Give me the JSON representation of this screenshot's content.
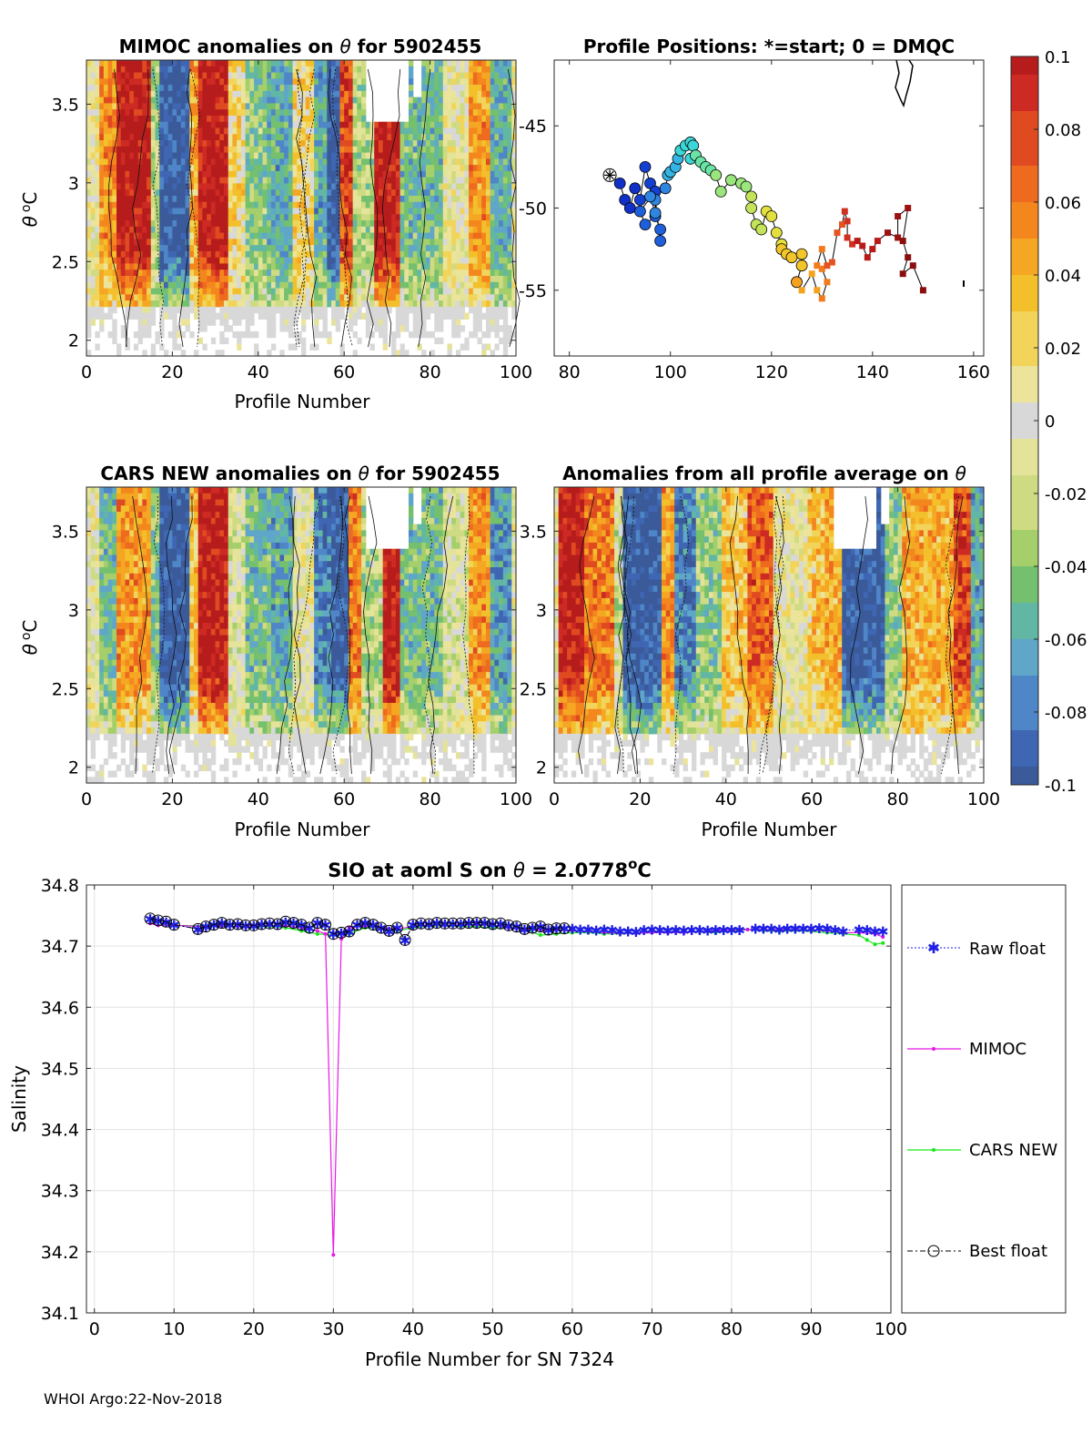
{
  "figure_footer": "WHOI Argo:22-Nov-2018",
  "theta_symbol": "θ",
  "colorbar": {
    "ticks": [
      0.1,
      0.08,
      0.06,
      0.04,
      0.02,
      0,
      -0.02,
      -0.04,
      -0.06,
      -0.08,
      -0.1
    ],
    "tick_labels": [
      "0.1",
      "0.08",
      "0.06",
      "0.04",
      "0.02",
      "0",
      "-0.02",
      "-0.04",
      "-0.06",
      "-0.08",
      "-0.1"
    ],
    "colors": [
      "#3B5A9A",
      "#3F66B3",
      "#4E86C7",
      "#5FA6C9",
      "#62B7A4",
      "#74C06F",
      "#A4CF6A",
      "#CFDB83",
      "#E4E39A",
      "#D8D8D8",
      "#ECE49A",
      "#F2D45A",
      "#F3C02C",
      "#F5A623",
      "#F4861E",
      "#EE6A1E",
      "#E04A21",
      "#CD2A23",
      "#B71C1C"
    ],
    "range": [
      -0.1,
      0.1
    ]
  },
  "chart_data": [
    {
      "id": "mimoc_anomalies",
      "type": "heatmap",
      "title_prefix": "MIMOC anomalies on",
      "title_suffix": " for 5902455",
      "xlabel": "Profile Number",
      "ylabel": "θ °C",
      "xlim": [
        0,
        100
      ],
      "ylim": [
        1.9,
        3.78
      ],
      "xticks": [
        0,
        20,
        40,
        60,
        80,
        100
      ],
      "yticks": [
        2,
        2.5,
        3,
        3.5
      ],
      "ytick_labels": [
        "2",
        "2.5",
        "3",
        "3.5"
      ]
    },
    {
      "id": "profile_positions",
      "type": "scatter",
      "title": "Profile Positions: *=start; 0 = DMQC",
      "xlim": [
        77,
        162
      ],
      "ylim": [
        -59,
        -41
      ],
      "xticks": [
        80,
        100,
        120,
        140,
        160
      ],
      "yticks": [
        -45,
        -50,
        -55
      ],
      "ytick_labels": [
        "-45",
        "-50",
        "-55"
      ],
      "start": [
        88,
        -48
      ],
      "track": [
        [
          88,
          -48
        ],
        [
          90,
          -48.5
        ],
        [
          91,
          -49.5
        ],
        [
          92,
          -50
        ],
        [
          93,
          -48.8
        ],
        [
          94,
          -49.5
        ],
        [
          95,
          -47.5
        ],
        [
          96,
          -48.5
        ],
        [
          97,
          -49
        ],
        [
          94,
          -50.2
        ],
        [
          95,
          -51
        ],
        [
          97,
          -50.5
        ],
        [
          98,
          -51.3
        ],
        [
          98,
          -52
        ],
        [
          97,
          -49.5
        ],
        [
          97,
          -50.3
        ],
        [
          96,
          -49.3
        ],
        [
          99,
          -48.8
        ],
        [
          99.5,
          -48
        ],
        [
          100,
          -47.8
        ],
        [
          101,
          -47.5
        ],
        [
          101.5,
          -47
        ],
        [
          102,
          -46.5
        ],
        [
          103,
          -46.2
        ],
        [
          104,
          -46
        ],
        [
          104.5,
          -46.2
        ],
        [
          104,
          -47
        ],
        [
          105,
          -46.8
        ],
        [
          106,
          -47.2
        ],
        [
          107,
          -47.5
        ],
        [
          108,
          -47.7
        ],
        [
          109,
          -48
        ],
        [
          110,
          -49
        ],
        [
          112,
          -48.3
        ],
        [
          114,
          -48.5
        ],
        [
          115,
          -48.7
        ],
        [
          116,
          -49.3
        ],
        [
          116,
          -50
        ],
        [
          117,
          -51
        ],
        [
          118,
          -51.3
        ],
        [
          119,
          -50.2
        ],
        [
          120,
          -50.5
        ],
        [
          121,
          -51.5
        ],
        [
          122,
          -52.2
        ],
        [
          122,
          -52.5
        ],
        [
          123,
          -52.8
        ],
        [
          124,
          -53
        ],
        [
          126,
          -52.8
        ],
        [
          126,
          -53.5
        ],
        [
          125,
          -54.5
        ],
        [
          126,
          -55
        ],
        [
          128,
          -54
        ],
        [
          129,
          -55
        ],
        [
          130,
          -55.5
        ],
        [
          131,
          -54.5
        ],
        [
          130,
          -53.7
        ],
        [
          129,
          -53.5
        ],
        [
          130,
          -52.5
        ],
        [
          131,
          -53.5
        ],
        [
          132,
          -53.3
        ],
        [
          133,
          -51.5
        ],
        [
          134,
          -51
        ],
        [
          134.5,
          -50.2
        ],
        [
          135,
          -50.8
        ],
        [
          135,
          -51.8
        ],
        [
          136,
          -52.2
        ],
        [
          137,
          -52
        ],
        [
          138,
          -52.3
        ],
        [
          139,
          -53
        ],
        [
          140,
          -52.5
        ],
        [
          141,
          -52
        ],
        [
          143,
          -51.5
        ],
        [
          145,
          -51.8
        ],
        [
          145,
          -50.5
        ],
        [
          147,
          -50
        ],
        [
          146,
          -52
        ],
        [
          147,
          -53
        ],
        [
          146,
          -54
        ],
        [
          148,
          -53.5
        ],
        [
          150,
          -55
        ]
      ],
      "start_color_index": 0,
      "end_color_index": 18
    },
    {
      "id": "cars_anomalies",
      "type": "heatmap",
      "title_prefix": "CARS NEW anomalies on",
      "title_suffix": " for 5902455",
      "xlabel": "Profile Number",
      "ylabel": "θ °C",
      "xlim": [
        0,
        100
      ],
      "ylim": [
        1.9,
        3.78
      ],
      "xticks": [
        0,
        20,
        40,
        60,
        80,
        100
      ],
      "yticks": [
        2,
        2.5,
        3,
        3.5
      ],
      "ytick_labels": [
        "2",
        "2.5",
        "3",
        "3.5"
      ]
    },
    {
      "id": "profile_average_anomalies",
      "type": "heatmap",
      "title_prefix": "Anomalies from all profile average on",
      "title_suffix": "",
      "xlabel": "Profile Number",
      "xlim": [
        0,
        100
      ],
      "ylim": [
        1.9,
        3.78
      ],
      "xticks": [
        0,
        20,
        40,
        60,
        80,
        100
      ],
      "yticks": [
        2,
        2.5,
        3,
        3.5
      ],
      "ytick_labels": [
        "2",
        "2.5",
        "3",
        "3.5"
      ]
    },
    {
      "id": "salinity_series",
      "type": "line",
      "title_prefix": "SIO at aoml S on",
      "title_eq": " = 2.0778",
      "title_unit_sup": "o",
      "title_unit": "C",
      "xlabel": "Profile Number for SN 7324",
      "ylabel": "Salinity",
      "xlim": [
        -1,
        100
      ],
      "ylim": [
        34.1,
        34.8
      ],
      "xticks": [
        0,
        10,
        20,
        30,
        40,
        50,
        60,
        70,
        80,
        90,
        100
      ],
      "yticks": [
        34.1,
        34.2,
        34.3,
        34.4,
        34.5,
        34.6,
        34.7,
        34.8
      ],
      "ytick_labels": [
        "34.1",
        "34.2",
        "34.3",
        "34.4",
        "34.5",
        "34.6",
        "34.7",
        "34.8"
      ],
      "series": [
        {
          "name": "Raw float",
          "color": "#1F1FE6",
          "x": [
            7,
            8,
            9,
            10,
            13,
            14,
            15,
            16,
            17,
            18,
            19,
            20,
            21,
            22,
            23,
            24,
            25,
            26,
            27,
            28,
            29,
            30,
            31,
            32,
            33,
            34,
            35,
            36,
            37,
            38,
            39,
            40,
            41,
            42,
            43,
            44,
            45,
            46,
            47,
            48,
            49,
            50,
            51,
            52,
            53,
            54,
            55,
            56,
            57,
            58,
            59,
            60,
            61,
            62,
            63,
            64,
            65,
            66,
            67,
            68,
            69,
            70,
            71,
            72,
            73,
            74,
            75,
            76,
            77,
            78,
            79,
            80,
            81,
            83,
            84,
            85,
            86,
            87,
            88,
            89,
            90,
            91,
            92,
            93,
            94,
            96,
            97,
            98,
            99
          ],
          "y": [
            34.745,
            34.742,
            34.74,
            34.735,
            34.728,
            34.732,
            34.735,
            34.738,
            34.735,
            34.736,
            34.734,
            34.734,
            34.736,
            34.737,
            34.736,
            34.74,
            34.738,
            34.735,
            34.73,
            34.738,
            34.735,
            34.72,
            34.722,
            34.724,
            34.735,
            34.738,
            34.735,
            34.73,
            34.725,
            34.73,
            34.71,
            34.735,
            34.737,
            34.736,
            34.738,
            34.737,
            34.737,
            34.737,
            34.738,
            34.738,
            34.738,
            34.736,
            34.737,
            34.734,
            34.732,
            34.728,
            34.73,
            34.732,
            34.727,
            34.729,
            34.729,
            34.729,
            34.728,
            34.728,
            34.726,
            34.728,
            34.727,
            34.725,
            34.725,
            34.724,
            34.727,
            34.728,
            34.727,
            34.726,
            34.727,
            34.726,
            34.727,
            34.727,
            34.726,
            34.727,
            34.727,
            34.727,
            34.727,
            34.729,
            34.729,
            34.729,
            34.728,
            34.729,
            34.729,
            34.729,
            34.729,
            34.73,
            34.729,
            34.727,
            34.725,
            34.728,
            34.727,
            34.725,
            34.725
          ]
        },
        {
          "name": "MIMOC",
          "color": "#E619E6",
          "x": [
            7,
            8,
            10,
            14,
            16,
            18,
            20,
            22,
            24,
            26,
            28,
            29,
            30,
            31,
            32,
            34,
            36,
            38,
            40,
            42,
            44,
            46,
            48,
            50,
            52,
            54,
            56,
            58,
            60,
            62,
            64,
            66,
            68,
            70,
            72,
            74,
            76,
            78,
            80,
            82,
            84,
            86,
            88,
            90,
            92,
            94,
            96,
            98,
            99
          ],
          "y": [
            34.737,
            34.734,
            34.734,
            34.732,
            34.733,
            34.732,
            34.733,
            34.734,
            34.733,
            34.73,
            34.725,
            34.72,
            34.195,
            34.712,
            34.73,
            34.733,
            34.73,
            34.728,
            34.732,
            34.735,
            34.734,
            34.735,
            34.735,
            34.734,
            34.73,
            34.727,
            34.727,
            34.726,
            34.725,
            34.724,
            34.722,
            34.721,
            34.721,
            34.722,
            34.722,
            34.722,
            34.724,
            34.725,
            34.727,
            34.727,
            34.727,
            34.727,
            34.727,
            34.726,
            34.725,
            34.722,
            34.722,
            34.72,
            34.715
          ]
        },
        {
          "name": "CARS NEW",
          "color": "#19E619",
          "x": [
            7,
            8,
            10,
            14,
            16,
            18,
            20,
            22,
            24,
            26,
            28,
            30,
            32,
            34,
            36,
            38,
            40,
            42,
            44,
            46,
            48,
            50,
            52,
            54,
            56,
            58,
            60,
            62,
            64,
            66,
            68,
            70,
            72,
            74,
            76,
            78,
            80,
            82,
            84,
            86,
            88,
            90,
            92,
            94,
            96,
            97,
            98,
            99
          ],
          "y": [
            34.738,
            34.735,
            34.734,
            34.733,
            34.732,
            34.732,
            34.731,
            34.732,
            34.73,
            34.725,
            34.72,
            34.718,
            34.72,
            34.73,
            34.73,
            34.725,
            34.73,
            34.733,
            34.733,
            34.732,
            34.732,
            34.73,
            34.73,
            34.728,
            34.718,
            34.72,
            34.722,
            34.722,
            34.72,
            34.72,
            34.721,
            34.722,
            34.722,
            34.723,
            34.723,
            34.722,
            34.725,
            34.727,
            34.725,
            34.724,
            34.725,
            34.724,
            34.722,
            34.72,
            34.718,
            34.71,
            34.703,
            34.705
          ]
        },
        {
          "name": "Best float",
          "color": "#000000",
          "x": [
            7,
            8,
            9,
            10,
            13,
            14,
            15,
            16,
            17,
            18,
            19,
            20,
            21,
            22,
            23,
            24,
            25,
            26,
            27,
            28,
            29,
            30,
            31,
            32,
            33,
            34,
            35,
            36,
            37,
            38,
            39,
            40,
            41,
            42,
            43,
            44,
            45,
            46,
            47,
            48,
            49,
            50,
            51,
            52,
            53,
            54,
            55,
            56,
            57,
            58,
            59
          ],
          "y": [
            34.745,
            34.742,
            34.74,
            34.735,
            34.728,
            34.732,
            34.735,
            34.738,
            34.735,
            34.736,
            34.734,
            34.734,
            34.736,
            34.737,
            34.736,
            34.74,
            34.738,
            34.735,
            34.73,
            34.738,
            34.735,
            34.72,
            34.722,
            34.724,
            34.735,
            34.738,
            34.735,
            34.73,
            34.725,
            34.73,
            34.71,
            34.735,
            34.737,
            34.736,
            34.738,
            34.737,
            34.737,
            34.737,
            34.738,
            34.738,
            34.738,
            34.736,
            34.737,
            34.734,
            34.732,
            34.728,
            34.73,
            34.732,
            34.727,
            34.729,
            34.729
          ]
        }
      ]
    }
  ]
}
